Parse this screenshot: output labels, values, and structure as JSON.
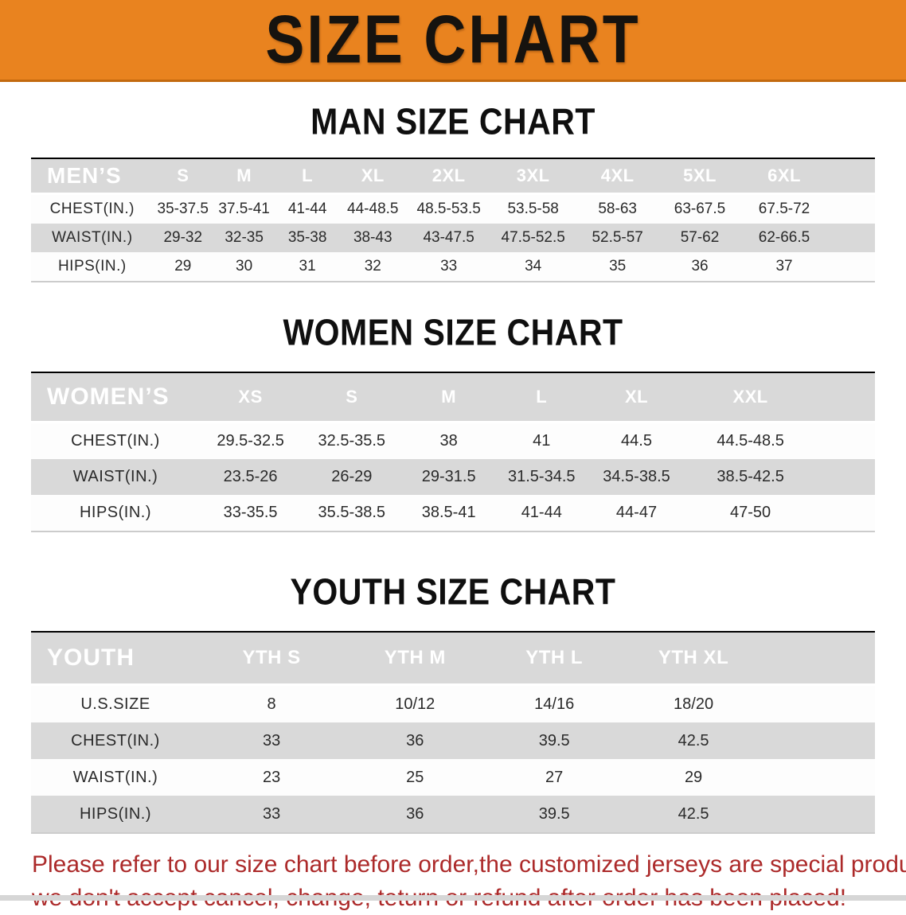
{
  "banner": {
    "title": "SIZE CHART"
  },
  "colors": {
    "banner_bg": "#E9831F",
    "header_bar_bg": "#151515",
    "header_text": "#FFFFFF",
    "row_gray": "#D9D9D9",
    "row_white": "#FDFDFD",
    "disclaimer_red": "#AC2A2A"
  },
  "men_chart": {
    "heading": "MAN SIZE CHART",
    "table": {
      "corner_label": "MEN’S",
      "columns": [
        "S",
        "M",
        "L",
        "XL",
        "2XL",
        "3XL",
        "4XL",
        "5XL",
        "6XL"
      ],
      "rows": [
        {
          "label": "CHEST(IN.)",
          "values": [
            "35-37.5",
            "37.5-41",
            "41-44",
            "44-48.5",
            "48.5-53.5",
            "53.5-58",
            "58-63",
            "63-67.5",
            "67.5-72"
          ]
        },
        {
          "label": "WAIST(IN.)",
          "values": [
            "29-32",
            "32-35",
            "35-38",
            "38-43",
            "43-47.5",
            "47.5-52.5",
            "52.5-57",
            "57-62",
            "62-66.5"
          ]
        },
        {
          "label": "HIPS(IN.)",
          "values": [
            "29",
            "30",
            "31",
            "32",
            "33",
            "34",
            "35",
            "36",
            "37"
          ]
        }
      ]
    }
  },
  "women_chart": {
    "heading": "WOMEN SIZE CHART",
    "table": {
      "corner_label": "WOMEN’S",
      "columns": [
        "XS",
        "S",
        "M",
        "L",
        "XL",
        "XXL"
      ],
      "rows": [
        {
          "label": "CHEST(IN.)",
          "values": [
            "29.5-32.5",
            "32.5-35.5",
            "38",
            "41",
            "44.5",
            "44.5-48.5"
          ]
        },
        {
          "label": "WAIST(IN.)",
          "values": [
            "23.5-26",
            "26-29",
            "29-31.5",
            "31.5-34.5",
            "34.5-38.5",
            "38.5-42.5"
          ]
        },
        {
          "label": "HIPS(IN.)",
          "values": [
            "33-35.5",
            "35.5-38.5",
            "38.5-41",
            "41-44",
            "44-47",
            "47-50"
          ]
        }
      ]
    }
  },
  "youth_chart": {
    "heading": "YOUTH SIZE CHART",
    "table": {
      "corner_label": "YOUTH",
      "columns": [
        "YTH S",
        "YTH M",
        "YTH L",
        "YTH XL"
      ],
      "rows": [
        {
          "label": "U.S.SIZE",
          "values": [
            "8",
            "10/12",
            "14/16",
            "18/20"
          ]
        },
        {
          "label": "CHEST(IN.)",
          "values": [
            "33",
            "36",
            "39.5",
            "42.5"
          ]
        },
        {
          "label": "WAIST(IN.)",
          "values": [
            "23",
            "25",
            "27",
            "29"
          ]
        },
        {
          "label": "HIPS(IN.)",
          "values": [
            "33",
            "36",
            "39.5",
            "42.5"
          ]
        }
      ]
    }
  },
  "disclaimer": {
    "line1": "Please refer to our size chart before order,the customized jerseys are special products,",
    "line2": "we don't accept cancel, change, teturn or refund after order has been placed!"
  }
}
